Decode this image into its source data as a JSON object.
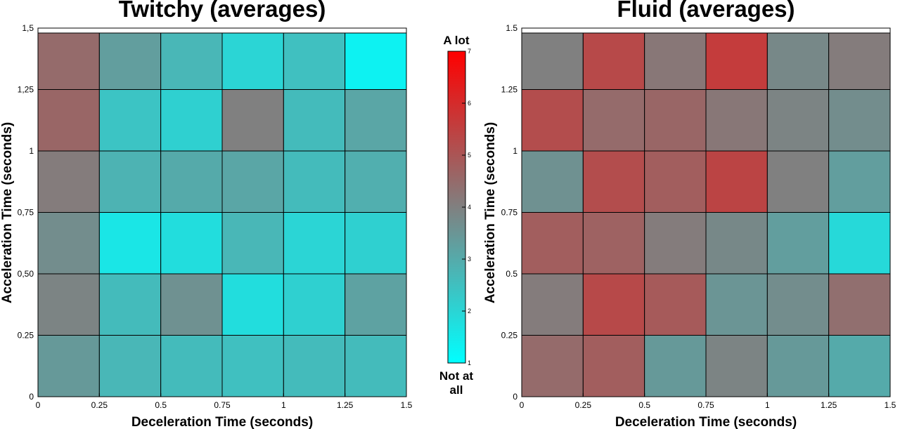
{
  "chart_data": [
    {
      "type": "heatmap",
      "title": "Twitchy (averages)",
      "xlabel": "Deceleration Time (seconds)",
      "ylabel": "Acceleration Time (seconds)",
      "xlim": [
        0,
        1.5
      ],
      "ylim": [
        0,
        1.5
      ],
      "xticks": [
        "0",
        "0.25",
        "0.5",
        "0.75",
        "1",
        "1.25",
        "1.5"
      ],
      "yticks": [
        "0",
        "0.25",
        "0,50",
        "0,75",
        "1",
        "1,25",
        "1,5"
      ],
      "x_edges": [
        0,
        0.25,
        0.5,
        0.75,
        1,
        1.25,
        1.5
      ],
      "y_edges": [
        0,
        0.25,
        0.5,
        0.75,
        1,
        1.25,
        1.48
      ],
      "rows_bottom_to_top": [
        [
          3.4,
          2.7,
          2.6,
          2.5,
          2.6,
          2.6
        ],
        [
          3.9,
          2.6,
          3.6,
          1.8,
          2.1,
          3.2
        ],
        [
          3.7,
          1.6,
          1.8,
          2.7,
          2.0,
          2.1
        ],
        [
          4.1,
          2.8,
          3.0,
          3.1,
          2.6,
          2.9
        ],
        [
          4.6,
          2.4,
          2.1,
          4.0,
          2.6,
          3.1
        ],
        [
          4.5,
          3.3,
          2.7,
          2.0,
          2.5,
          1.3
        ]
      ]
    },
    {
      "type": "heatmap",
      "title": "Fluid (averages)",
      "xlabel": "Deceleration Time (seconds)",
      "ylabel": "Acceleration Time (seconds)",
      "xlim": [
        0,
        1.5
      ],
      "ylim": [
        0,
        1.5
      ],
      "xticks": [
        "0",
        "0.25",
        "0.5",
        "0.75",
        "1",
        "1.25",
        "1.5"
      ],
      "yticks": [
        "0",
        "0.25",
        "0.5",
        "0.75",
        "1",
        "1.25",
        "1.5"
      ],
      "x_edges": [
        0,
        0.25,
        0.5,
        0.75,
        1,
        1.25,
        1.5
      ],
      "y_edges": [
        0,
        0.25,
        0.5,
        0.75,
        1,
        1.25,
        1.48
      ],
      "rows_bottom_to_top": [
        [
          4.5,
          4.8,
          3.4,
          3.9,
          3.4,
          3.0
        ],
        [
          4.1,
          5.3,
          4.9,
          3.5,
          3.7,
          4.4
        ],
        [
          4.8,
          4.7,
          4.1,
          3.8,
          3.3,
          1.9
        ],
        [
          3.6,
          5.2,
          4.8,
          5.4,
          4.0,
          3.3
        ],
        [
          5.2,
          4.5,
          4.6,
          4.2,
          3.9,
          3.7
        ],
        [
          4.0,
          5.3,
          4.2,
          5.6,
          3.8,
          4.1
        ]
      ]
    }
  ],
  "colorbar": {
    "min": 1,
    "max": 7,
    "low_color": "#00ffff",
    "mid_color": "#808080",
    "high_color": "#ff0000",
    "ticks": [
      "1",
      "2",
      "3",
      "4",
      "5",
      "6",
      "7"
    ],
    "top_label": "A lot",
    "bottom_label_line1": "Not at",
    "bottom_label_line2": "all"
  },
  "style": {
    "cell_border_color": "#000000",
    "axis_color": "#000000"
  }
}
